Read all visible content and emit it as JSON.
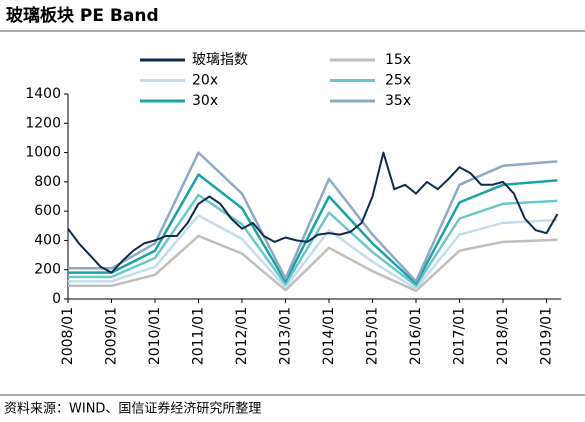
{
  "chart_data": {
    "type": "line",
    "title": "玻璃板块 PE Band",
    "source": "资料来源：WIND、国信证券经济研究所整理",
    "ylim": [
      0,
      1400
    ],
    "yticks": [
      0,
      200,
      400,
      600,
      800,
      1000,
      1200,
      1400
    ],
    "xlim": [
      "2008/01",
      "2019/04"
    ],
    "xticks": [
      "2008/01",
      "2009/01",
      "2010/01",
      "2011/01",
      "2012/01",
      "2013/01",
      "2014/01",
      "2015/01",
      "2016/01",
      "2017/01",
      "2018/01",
      "2019/01"
    ],
    "series": [
      {
        "name": "玻璃指数",
        "color": "#0d2b4e",
        "x": [
          "2008/01",
          "2008/04",
          "2008/07",
          "2008/10",
          "2009/01",
          "2009/04",
          "2009/07",
          "2009/10",
          "2010/01",
          "2010/04",
          "2010/07",
          "2010/10",
          "2011/01",
          "2011/04",
          "2011/07",
          "2011/10",
          "2012/01",
          "2012/04",
          "2012/07",
          "2012/10",
          "2013/01",
          "2013/04",
          "2013/07",
          "2013/10",
          "2014/01",
          "2014/04",
          "2014/07",
          "2014/10",
          "2015/01",
          "2015/04",
          "2015/07",
          "2015/10",
          "2016/01",
          "2016/04",
          "2016/07",
          "2016/10",
          "2017/01",
          "2017/04",
          "2017/07",
          "2017/10",
          "2018/01",
          "2018/04",
          "2018/07",
          "2018/10",
          "2019/01",
          "2019/04"
        ],
        "values": [
          480,
          380,
          300,
          220,
          180,
          260,
          330,
          380,
          400,
          430,
          430,
          520,
          650,
          700,
          650,
          550,
          480,
          520,
          430,
          390,
          420,
          400,
          390,
          440,
          450,
          440,
          460,
          520,
          700,
          1000,
          750,
          780,
          720,
          800,
          750,
          820,
          900,
          860,
          780,
          780,
          800,
          720,
          550,
          470,
          450,
          580
        ]
      },
      {
        "name": "15x",
        "color": "#bfbebb",
        "x": [
          "2008/01",
          "2009/01",
          "2010/01",
          "2011/01",
          "2012/01",
          "2013/01",
          "2014/01",
          "2015/01",
          "2016/01",
          "2017/01",
          "2018/01",
          "2019/04"
        ],
        "values": [
          90,
          90,
          165,
          430,
          310,
          60,
          350,
          190,
          55,
          330,
          390,
          405
        ]
      },
      {
        "name": "20x",
        "color": "#c5dbee",
        "x": [
          "2008/01",
          "2009/01",
          "2010/01",
          "2011/01",
          "2012/01",
          "2013/01",
          "2014/01",
          "2015/01",
          "2016/01",
          "2017/01",
          "2018/01",
          "2019/04"
        ],
        "values": [
          120,
          120,
          220,
          570,
          410,
          80,
          470,
          255,
          70,
          440,
          520,
          540
        ]
      },
      {
        "name": "25x",
        "color": "#6cc7cc",
        "x": [
          "2008/01",
          "2009/01",
          "2010/01",
          "2011/01",
          "2012/01",
          "2013/01",
          "2014/01",
          "2015/01",
          "2016/01",
          "2017/01",
          "2018/01",
          "2019/04"
        ],
        "values": [
          150,
          150,
          280,
          710,
          510,
          100,
          590,
          320,
          90,
          550,
          650,
          670
        ]
      },
      {
        "name": "30x",
        "color": "#1aa3a3",
        "x": [
          "2008/01",
          "2009/01",
          "2010/01",
          "2011/01",
          "2012/01",
          "2013/01",
          "2014/01",
          "2015/01",
          "2016/01",
          "2017/01",
          "2018/01",
          "2019/04"
        ],
        "values": [
          180,
          180,
          330,
          850,
          620,
          120,
          700,
          380,
          105,
          660,
          780,
          810
        ]
      },
      {
        "name": "35x",
        "color": "#8ea9c8",
        "x": [
          "2008/01",
          "2009/01",
          "2010/01",
          "2011/01",
          "2012/01",
          "2013/01",
          "2014/01",
          "2015/01",
          "2016/01",
          "2017/01",
          "2018/01",
          "2019/04"
        ],
        "values": [
          210,
          210,
          380,
          1000,
          720,
          140,
          820,
          440,
          120,
          780,
          910,
          940
        ]
      }
    ]
  }
}
